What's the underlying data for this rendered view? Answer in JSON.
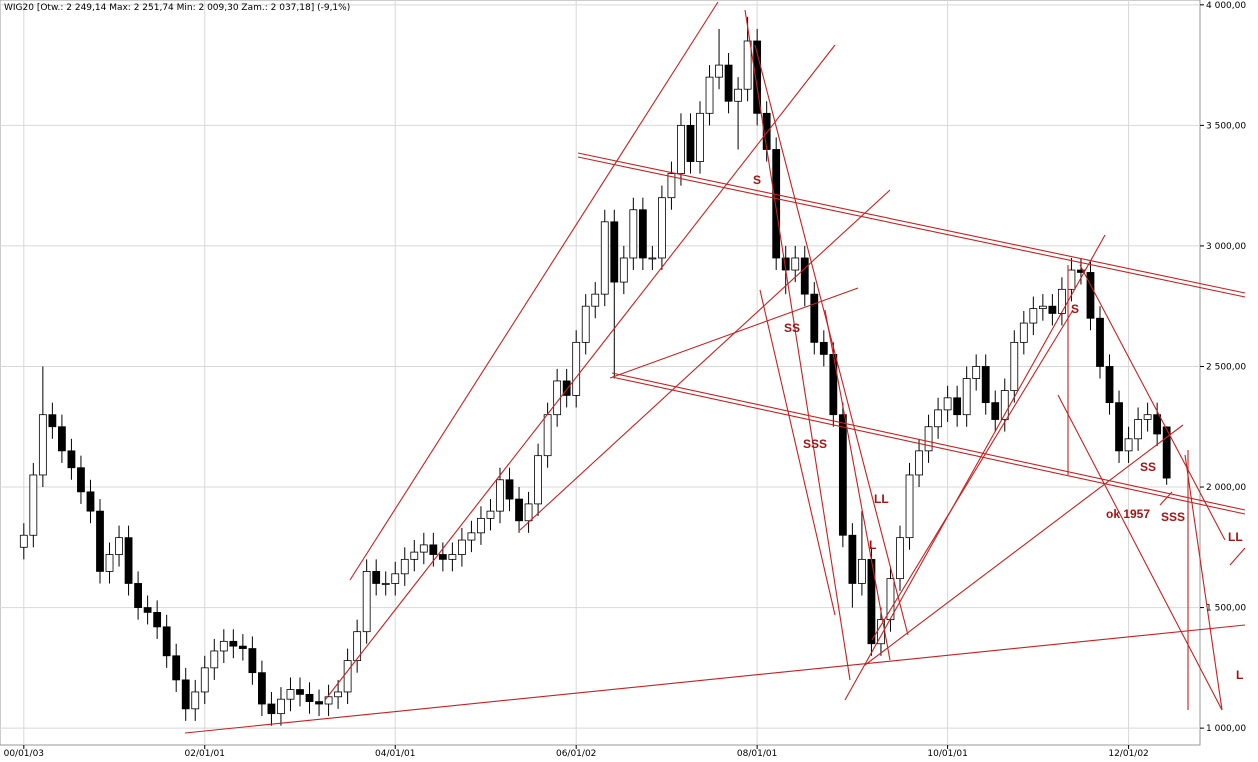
{
  "chart_data": {
    "type": "candlestick",
    "title": "WIG20 [Otw.: 2 249,14  Max: 2 251,74  Min: 2 009,30  Zam.: 2 037,18] (-9,1%)",
    "open": [
      1750,
      1800,
      2050,
      2300,
      2250,
      2150,
      2080,
      1980,
      1900,
      1650,
      1720,
      1790,
      1600,
      1500,
      1480,
      1420,
      1300,
      1200,
      1080,
      1150,
      1250,
      1320,
      1360,
      1340,
      1330,
      1230,
      1100,
      1060,
      1120,
      1160,
      1140,
      1110,
      1100,
      1130,
      1150,
      1280,
      1400,
      1650,
      1600,
      1600,
      1640,
      1700,
      1730,
      1760,
      1720,
      1700,
      1720,
      1780,
      1810,
      1870,
      1900,
      2030,
      1950,
      1860,
      1930,
      2130,
      2300,
      2440,
      2380,
      2600,
      2750,
      2800,
      3100,
      2850,
      2950,
      3150,
      2950,
      2950,
      3200,
      3300,
      3500,
      3350,
      3550,
      3700,
      3750,
      3600,
      3650,
      3850,
      3550,
      3400,
      2950,
      2900,
      2950,
      2800,
      2600,
      2550,
      2300,
      1800,
      1600,
      1700,
      1350,
      1450,
      1620,
      1790,
      2050,
      2150,
      2250,
      2320,
      2370,
      2300,
      2450,
      2500,
      2350,
      2280,
      2400,
      2600,
      2680,
      2740,
      2750,
      2720,
      2820,
      2900,
      2890,
      2700,
      2500,
      2350,
      2150,
      2200,
      2280,
      2300,
      2249.14
    ],
    "high": [
      1850,
      2100,
      2500,
      2350,
      2300,
      2200,
      2130,
      2030,
      1950,
      1770,
      1840,
      1840,
      1650,
      1550,
      1530,
      1470,
      1350,
      1250,
      1200,
      1300,
      1370,
      1410,
      1410,
      1390,
      1380,
      1280,
      1150,
      1170,
      1210,
      1210,
      1190,
      1160,
      1180,
      1200,
      1330,
      1450,
      1700,
      1700,
      1650,
      1690,
      1750,
      1780,
      1810,
      1810,
      1770,
      1770,
      1830,
      1860,
      1920,
      1950,
      2080,
      2080,
      2000,
      1980,
      2180,
      2350,
      2490,
      2490,
      2650,
      2800,
      2850,
      3150,
      3150,
      3000,
      3200,
      3200,
      3000,
      3250,
      3350,
      3550,
      3550,
      3600,
      3750,
      3900,
      3800,
      3700,
      3950,
      3900,
      3600,
      3450,
      3000,
      3000,
      3000,
      2850,
      2650,
      2600,
      2350,
      1850,
      1900,
      1750,
      1500,
      1670,
      1840,
      2100,
      2200,
      2300,
      2370,
      2420,
      2420,
      2500,
      2550,
      2550,
      2400,
      2450,
      2650,
      2730,
      2790,
      2800,
      2800,
      2870,
      2950,
      2950,
      2940,
      2750,
      2550,
      2400,
      2250,
      2330,
      2350,
      2350,
      2251.74
    ],
    "low": [
      1700,
      1750,
      2000,
      2200,
      2100,
      2030,
      1930,
      1850,
      1600,
      1600,
      1670,
      1550,
      1450,
      1430,
      1370,
      1250,
      1150,
      1030,
      1030,
      1100,
      1200,
      1270,
      1290,
      1280,
      1180,
      1050,
      1010,
      1010,
      1070,
      1090,
      1060,
      1050,
      1050,
      1080,
      1100,
      1230,
      1350,
      1550,
      1550,
      1550,
      1590,
      1650,
      1680,
      1670,
      1650,
      1650,
      1670,
      1730,
      1760,
      1820,
      1850,
      1900,
      1810,
      1810,
      1880,
      2080,
      2250,
      2330,
      2330,
      2550,
      2700,
      2750,
      2450,
      2800,
      2900,
      2900,
      2900,
      2900,
      3150,
      3250,
      3300,
      3300,
      3500,
      3650,
      3550,
      3400,
      3600,
      3500,
      3350,
      2900,
      2800,
      2850,
      2750,
      2550,
      2500,
      2250,
      1750,
      1500,
      1550,
      1300,
      1300,
      1400,
      1570,
      1740,
      2000,
      2100,
      2200,
      2270,
      2250,
      2250,
      2400,
      2300,
      2230,
      2230,
      2350,
      2550,
      2630,
      2690,
      2670,
      2670,
      2770,
      2840,
      2650,
      2450,
      2300,
      2100,
      2100,
      2150,
      2230,
      2170,
      2009.3
    ],
    "close": [
      1800,
      2050,
      2300,
      2250,
      2150,
      2080,
      1980,
      1900,
      1650,
      1720,
      1790,
      1600,
      1500,
      1480,
      1420,
      1300,
      1200,
      1080,
      1150,
      1250,
      1320,
      1360,
      1340,
      1330,
      1230,
      1100,
      1060,
      1120,
      1160,
      1140,
      1110,
      1100,
      1130,
      1150,
      1280,
      1400,
      1650,
      1600,
      1600,
      1640,
      1700,
      1730,
      1760,
      1720,
      1700,
      1720,
      1780,
      1810,
      1870,
      1900,
      2030,
      1950,
      1860,
      1930,
      2130,
      2300,
      2440,
      2380,
      2600,
      2750,
      2800,
      3100,
      2850,
      2950,
      3150,
      2950,
      2950,
      3200,
      3300,
      3500,
      3350,
      3550,
      3700,
      3750,
      3600,
      3650,
      3850,
      3550,
      3400,
      2950,
      2900,
      2950,
      2800,
      2600,
      2550,
      2300,
      1800,
      1600,
      1700,
      1350,
      1450,
      1620,
      1790,
      2050,
      2150,
      2250,
      2320,
      2370,
      2300,
      2450,
      2500,
      2350,
      2280,
      2400,
      2600,
      2680,
      2740,
      2750,
      2720,
      2820,
      2900,
      2890,
      2700,
      2500,
      2350,
      2150,
      2200,
      2280,
      2300,
      2220,
      2037.18
    ],
    "xlim": [
      -2.5,
      123.5
    ],
    "xticks": [
      {
        "value": 0,
        "label": "00/01/03"
      },
      {
        "value": 19,
        "label": "02/01/01"
      },
      {
        "value": 39,
        "label": "04/01/01"
      },
      {
        "value": 58,
        "label": "06/01/02"
      },
      {
        "value": 77,
        "label": "08/01/01"
      },
      {
        "value": 97,
        "label": "10/01/01"
      },
      {
        "value": 116,
        "label": "12/01/02"
      }
    ],
    "ylim": [
      930,
      4020
    ],
    "yticks": [
      {
        "value": 1000,
        "label": "1 000,00"
      },
      {
        "value": 1500,
        "label": "1 500,00"
      },
      {
        "value": 2000,
        "label": "2 000,00"
      },
      {
        "value": 2500,
        "label": "2 500,00"
      },
      {
        "value": 3000,
        "label": "3 000,00"
      },
      {
        "value": 3500,
        "label": "3 500,00"
      },
      {
        "value": 4000,
        "label": "4 000,00"
      }
    ],
    "grid": true,
    "annotations": [
      "S",
      "SS",
      "SSS",
      "LL",
      "L",
      "S",
      "SS",
      "ok 1957",
      "SSS",
      "LL",
      "L"
    ]
  }
}
